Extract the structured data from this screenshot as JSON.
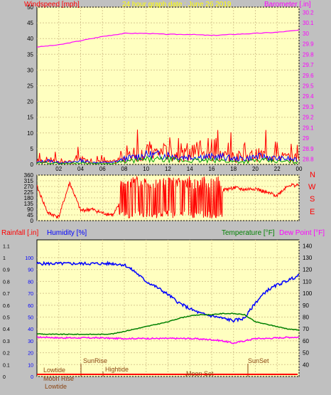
{
  "colors": {
    "background": "#c0c0c0",
    "plot_bg": "#ffffc0",
    "grid": "#d8c890",
    "wind": "#ff0000",
    "gust": "#0000ff",
    "wind_avg": "#00a000",
    "barometer": "#ff00ff",
    "direction": "#ff0000",
    "humidity": "#0000ff",
    "temperature": "#008000",
    "dew_point": "#ff00ff",
    "rainfall": "#ff0000",
    "title": "#ffff00",
    "label_dark": "#8b4513"
  },
  "header": {
    "wind_label": "Windspeed [mph]",
    "title": "24 hour graph date : June 26 2019",
    "baro_label": "Barometer [.in]"
  },
  "bottom_header": {
    "rain_label": "Rainfall [.in]",
    "humidity_label": "Humidity [%]",
    "temp_label": "Temperature [°F]",
    "dew_label": "Dew Point [°F]"
  },
  "compass": {
    "n": "N",
    "w": "W",
    "s": "S",
    "e": "E"
  },
  "events": {
    "lowtide": "Lowtide",
    "sunrise": "SunRise",
    "hightide": "Hightide",
    "moonset": "Moon Set",
    "sunset": "SunSet",
    "moonrise": "Moon Rise",
    "lowtide2": "Lowtide"
  },
  "chart_data": [
    {
      "type": "line",
      "name": "wind-barometer",
      "x_ticks": [
        "02",
        "04",
        "06",
        "08",
        "10",
        "12",
        "14",
        "16",
        "18",
        "20",
        "22",
        "00"
      ],
      "y_left_ticks": [
        "0",
        "5",
        "10",
        "15",
        "20",
        "25",
        "30",
        "35",
        "40",
        "45",
        "50"
      ],
      "y_left_range": [
        0,
        50
      ],
      "y_right_ticks": [
        "28.8",
        "28.9",
        "29",
        "29.1",
        "29.2",
        "29.3",
        "29.4",
        "29.5",
        "29.6",
        "29.7",
        "29.8",
        "29.9",
        "30",
        "30.1",
        "30.2"
      ],
      "y_right_range": [
        28.75,
        30.25
      ],
      "series": [
        {
          "name": "Windspeed",
          "unit": "mph",
          "x": [
            0,
            1,
            2,
            3,
            4,
            5,
            6,
            7,
            8,
            9,
            10,
            11,
            12,
            13,
            14,
            15,
            16,
            17,
            18,
            19,
            20,
            21,
            22,
            23,
            24
          ],
          "values": [
            1,
            2,
            1,
            1,
            2,
            1,
            1,
            1,
            3,
            4,
            5,
            5,
            5,
            4,
            4,
            4,
            4,
            4,
            3,
            3,
            4,
            4,
            3,
            3,
            2
          ]
        },
        {
          "name": "Barometer",
          "unit": "in",
          "x": [
            0,
            2,
            4,
            6,
            8,
            10,
            12,
            14,
            16,
            18,
            20,
            22,
            24
          ],
          "values": [
            29.87,
            29.89,
            29.93,
            29.97,
            30.0,
            30.0,
            29.99,
            29.99,
            29.98,
            29.99,
            30.0,
            30.01,
            30.03
          ]
        }
      ]
    },
    {
      "type": "line",
      "name": "wind-direction",
      "y_ticks": [
        "360",
        "315",
        "270",
        "225",
        "180",
        "135",
        "90",
        "45",
        "0"
      ],
      "y_range": [
        0,
        360
      ],
      "series": [
        {
          "name": "Direction",
          "unit": "deg",
          "x": [
            0,
            1,
            2,
            3,
            4,
            5,
            6,
            7,
            8,
            9,
            10,
            11,
            12,
            13,
            14,
            15,
            16,
            17,
            18,
            19,
            20,
            21,
            22,
            23,
            24
          ],
          "values": [
            270,
            60,
            30,
            300,
            80,
            90,
            60,
            45,
            200,
            180,
            210,
            250,
            270,
            260,
            250,
            265,
            270,
            240,
            260,
            245,
            255,
            220,
            200,
            280,
            280
          ]
        }
      ]
    },
    {
      "type": "line",
      "name": "rain-humidity-temp",
      "y_left_ticks": [
        "0",
        "0.1",
        "0.2",
        "0.3",
        "0.4",
        "0.5",
        "0.6",
        "0.7",
        "0.8",
        "0.9",
        "1",
        "1.1"
      ],
      "y_left_range": [
        0,
        1.15
      ],
      "y_humidity_ticks": [
        "0",
        "10",
        "20",
        "30",
        "40",
        "50",
        "60",
        "70",
        "80",
        "90",
        "100"
      ],
      "y_humidity_range": [
        0,
        115
      ],
      "y_right_ticks": [
        "40",
        "50",
        "60",
        "70",
        "80",
        "90",
        "100",
        "110",
        "120",
        "130",
        "140"
      ],
      "y_right_range": [
        30,
        145
      ],
      "series": [
        {
          "name": "Humidity",
          "unit": "%",
          "x": [
            0,
            1,
            2,
            3,
            4,
            5,
            6,
            7,
            8,
            9,
            10,
            11,
            12,
            13,
            14,
            15,
            16,
            17,
            18,
            19,
            20,
            21,
            22,
            23,
            24
          ],
          "values": [
            95,
            95,
            95,
            95,
            95,
            95,
            95,
            95,
            94,
            88,
            80,
            75,
            69,
            62,
            57,
            53,
            51,
            49,
            47,
            49,
            62,
            72,
            77,
            81,
            85
          ]
        },
        {
          "name": "Temperature",
          "unit": "°F",
          "x": [
            0,
            1,
            2,
            3,
            4,
            5,
            6,
            7,
            8,
            9,
            10,
            11,
            12,
            13,
            14,
            15,
            16,
            17,
            18,
            19,
            20,
            21,
            22,
            23,
            24
          ],
          "values": [
            66,
            65.5,
            65.5,
            65.5,
            65.5,
            65.5,
            65.5,
            66,
            68,
            70,
            72,
            74,
            76,
            79,
            81,
            82,
            82,
            83,
            83,
            82,
            76,
            74,
            72,
            70,
            69
          ]
        },
        {
          "name": "Dew Point",
          "unit": "°F",
          "x": [
            0,
            1,
            2,
            3,
            4,
            5,
            6,
            7,
            8,
            9,
            10,
            11,
            12,
            13,
            14,
            15,
            16,
            17,
            18,
            19,
            20,
            21,
            22,
            23,
            24
          ],
          "values": [
            63,
            63,
            62.5,
            62.5,
            62.5,
            62.5,
            62.5,
            62,
            62,
            62,
            62,
            62,
            62,
            62,
            62,
            61.5,
            61,
            60,
            58,
            60,
            62,
            62,
            62.5,
            63,
            63
          ]
        },
        {
          "name": "Rainfall",
          "unit": "in",
          "x": [
            0,
            24
          ],
          "values": [
            0.01,
            0.01
          ]
        }
      ]
    }
  ]
}
